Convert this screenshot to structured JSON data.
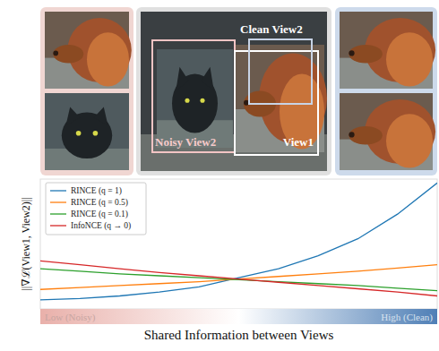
{
  "chart_data": {
    "type": "line",
    "x_label": "Shared Information between Views",
    "y_label": "||∇ℒ(View1, View2)||",
    "annotations": [
      "Low (Noisy)",
      "High (Clean)"
    ],
    "x": [
      0,
      0.1,
      0.2,
      0.3,
      0.4,
      0.5,
      0.6,
      0.7,
      0.8,
      0.9,
      1.0
    ],
    "xlim": [
      0,
      1
    ],
    "ylim": [
      0,
      1
    ],
    "tick_labels": false,
    "grid": false,
    "legend": "upper-left",
    "series": [
      {
        "name": "RINCE (q = 1)",
        "color": "#1f77b4",
        "values": [
          0.07,
          0.08,
          0.1,
          0.13,
          0.17,
          0.24,
          0.31,
          0.41,
          0.54,
          0.73,
          0.97
        ]
      },
      {
        "name": "RINCE (q = 0.5)",
        "color": "#ff7f0e",
        "values": [
          0.15,
          0.165,
          0.18,
          0.195,
          0.21,
          0.23,
          0.25,
          0.27,
          0.29,
          0.315,
          0.34
        ]
      },
      {
        "name": "RINCE (q = 0.1)",
        "color": "#2ca02c",
        "values": [
          0.31,
          0.29,
          0.27,
          0.255,
          0.24,
          0.225,
          0.21,
          0.195,
          0.18,
          0.16,
          0.14
        ]
      },
      {
        "name": "InfoNCE (q → 0)",
        "color": "#d62728",
        "values": [
          0.37,
          0.34,
          0.31,
          0.28,
          0.255,
          0.23,
          0.205,
          0.18,
          0.155,
          0.13,
          0.1
        ]
      }
    ]
  },
  "figure": {
    "labels": [
      "Clean View2",
      "View1",
      "Noisy View2"
    ]
  }
}
